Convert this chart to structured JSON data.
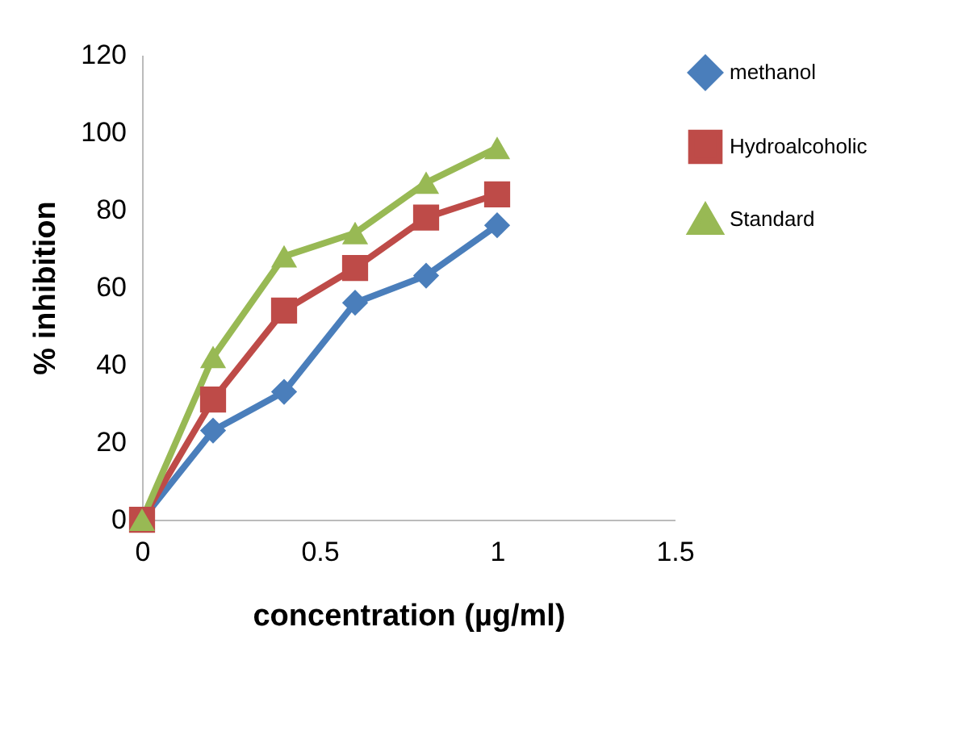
{
  "chart_data": {
    "type": "line",
    "xlabel": "concentration (µg/ml)",
    "ylabel": "% inhibition",
    "x": [
      0,
      0.2,
      0.4,
      0.6,
      0.8,
      1
    ],
    "series": [
      {
        "name": "methanol",
        "color": "#4a7ebb",
        "marker": "diamond",
        "values": [
          0,
          23,
          33,
          56,
          63,
          76
        ]
      },
      {
        "name": "Hydroalcoholic",
        "color": "#be4b48",
        "marker": "square",
        "values": [
          0,
          31,
          54,
          65,
          78,
          84
        ]
      },
      {
        "name": "Standard",
        "color": "#98b954",
        "marker": "triangle",
        "values": [
          0,
          42,
          68,
          74,
          87,
          96
        ]
      }
    ],
    "xlim": [
      0,
      1.5
    ],
    "xticks": [
      0,
      0.5,
      1,
      1.5
    ],
    "ylim": [
      0,
      120
    ],
    "yticks": [
      0,
      20,
      40,
      60,
      80,
      100,
      120
    ],
    "grid": false,
    "legend": "right"
  }
}
